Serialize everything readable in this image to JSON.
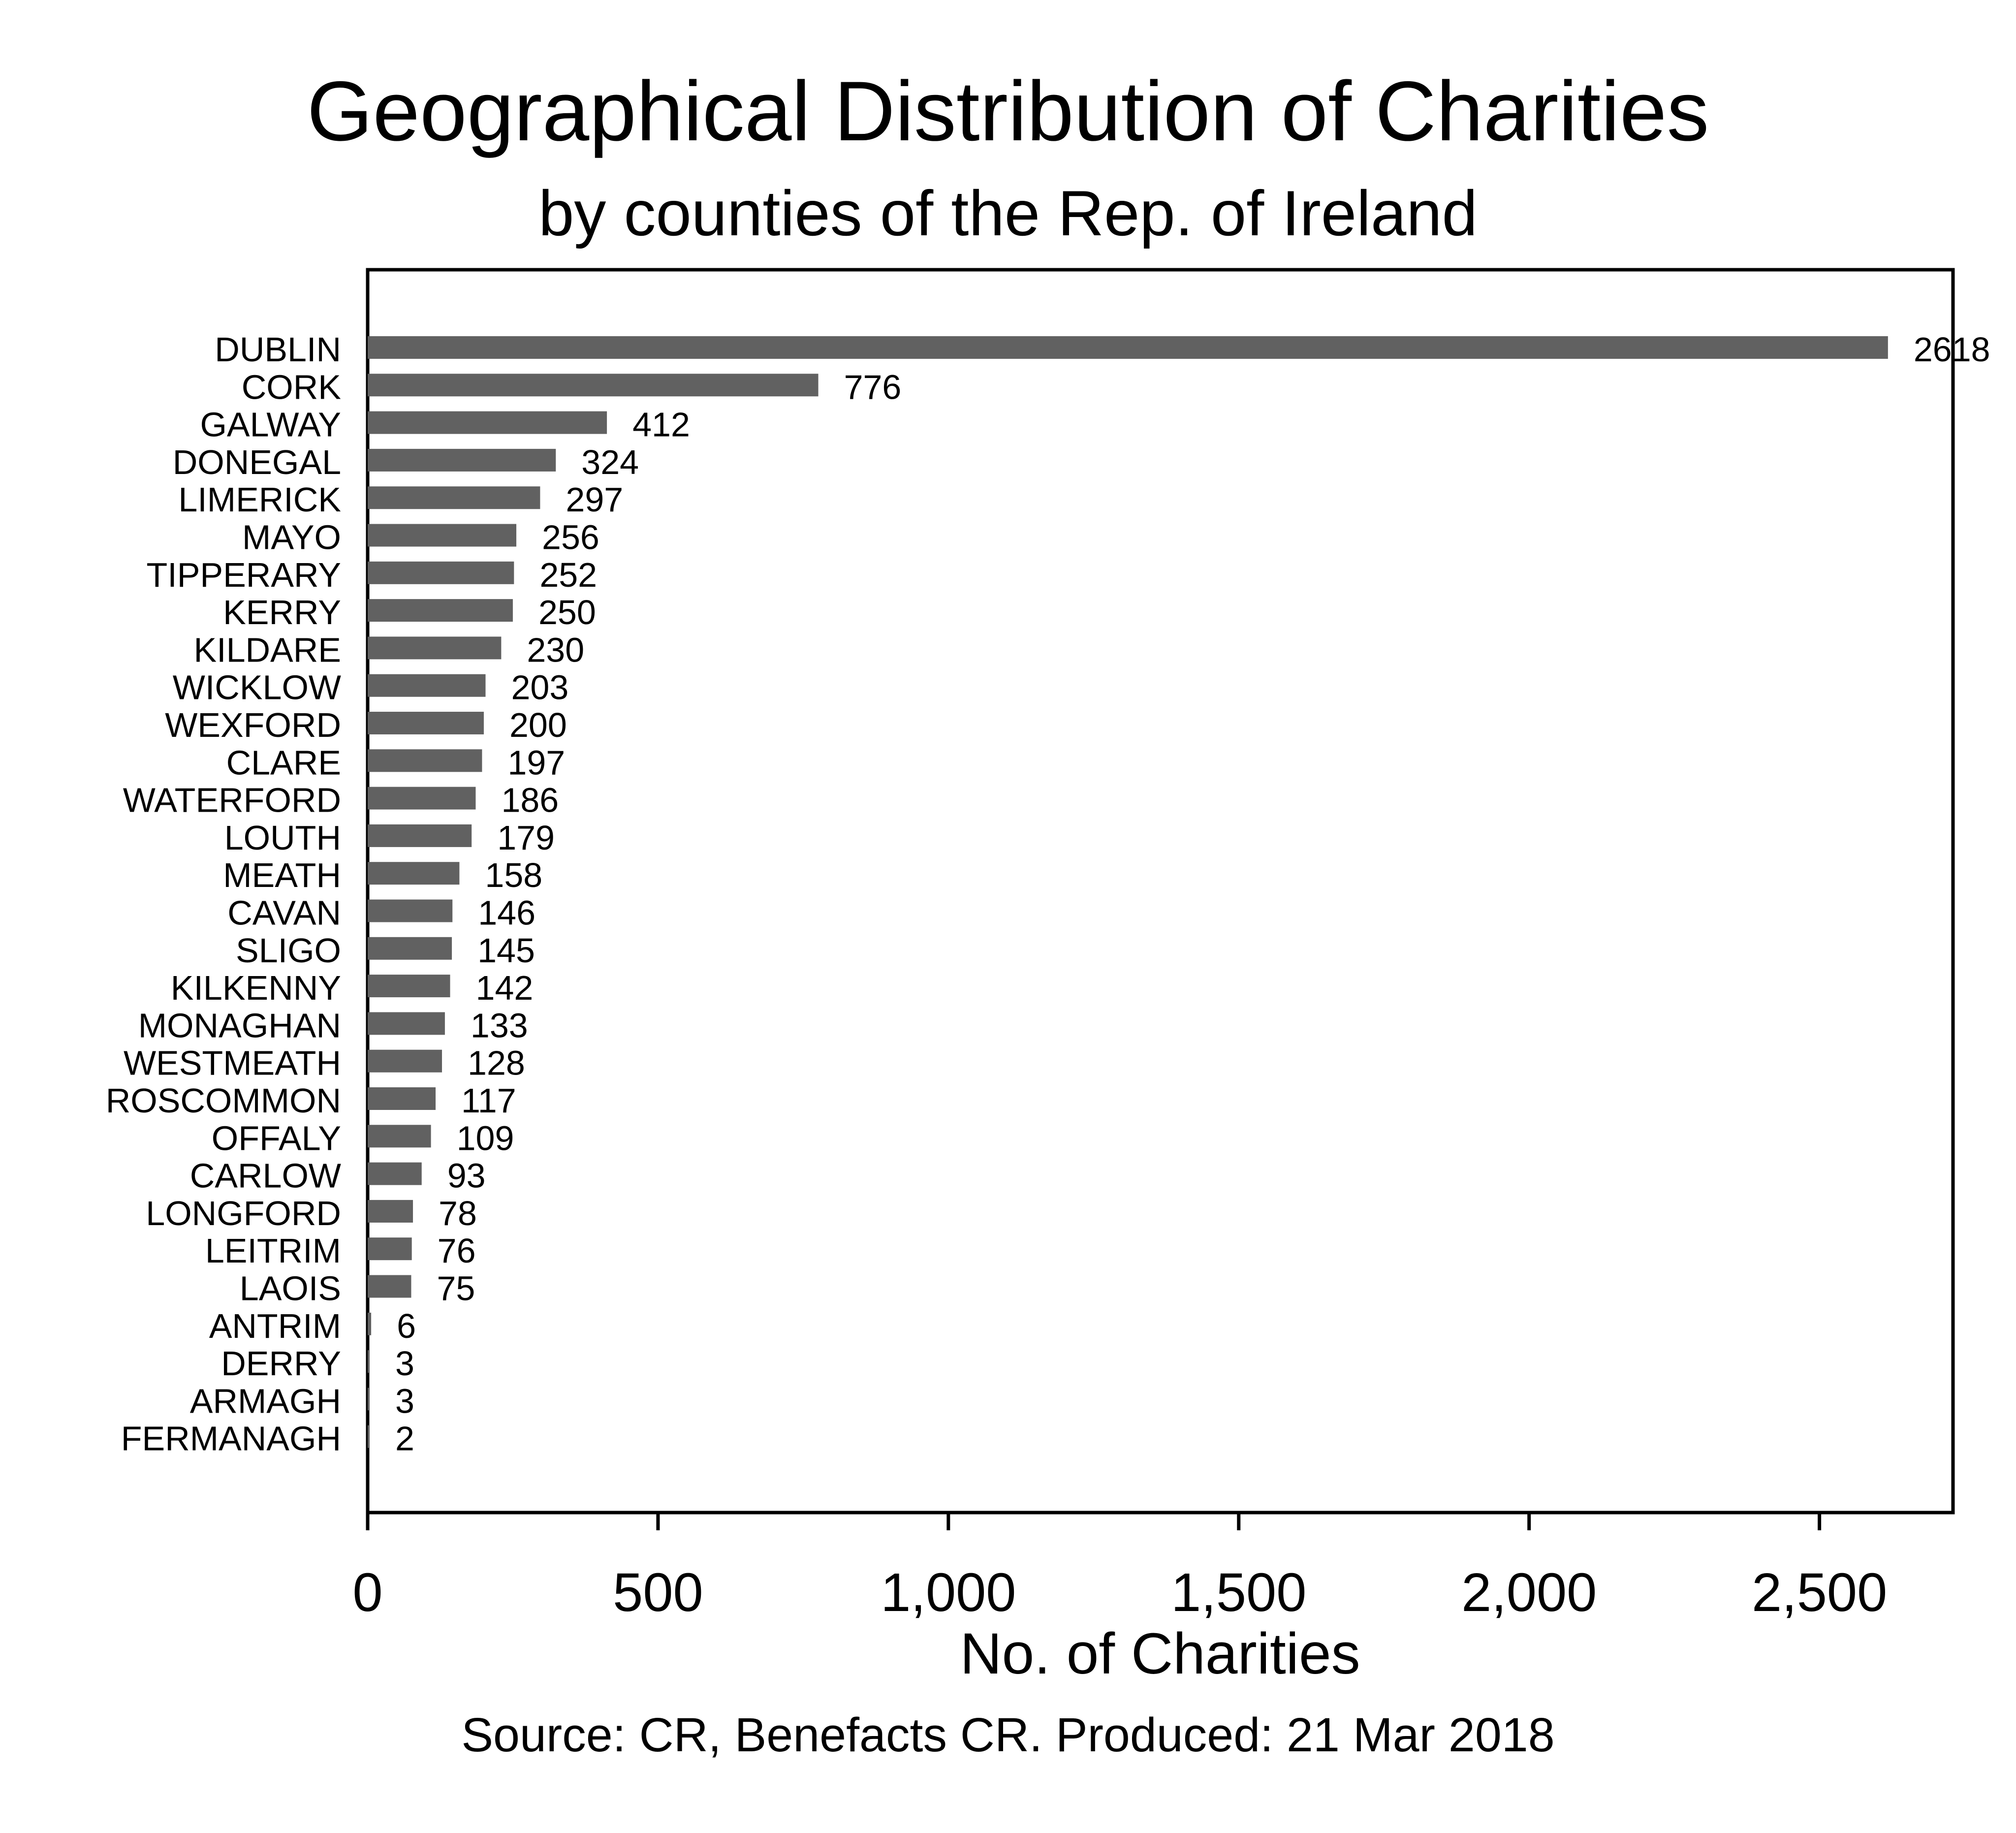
{
  "chart_data": {
    "type": "bar",
    "orientation": "horizontal",
    "title": "Geographical Distribution of Charities",
    "subtitle": "by counties of the Rep. of Ireland",
    "xlabel": "No. of Charities",
    "ylabel": "",
    "source": "Source:  CR, Benefacts CR. Produced: 21 Mar 2018",
    "xlim": [
      0,
      2730
    ],
    "x_ticks": [
      0,
      500,
      1000,
      1500,
      2000,
      2500
    ],
    "x_tick_labels": [
      "0",
      "500",
      "1,000",
      "1,500",
      "2,000",
      "2,500"
    ],
    "grid": false,
    "bar_color": "#616161",
    "categories": [
      "DUBLIN",
      "CORK",
      "GALWAY",
      "DONEGAL",
      "LIMERICK",
      "MAYO",
      "TIPPERARY",
      "KERRY",
      "KILDARE",
      "WICKLOW",
      "WEXFORD",
      "CLARE",
      "WATERFORD",
      "LOUTH",
      "MEATH",
      "CAVAN",
      "SLIGO",
      "KILKENNY",
      "MONAGHAN",
      "WESTMEATH",
      "ROSCOMMON",
      "OFFALY",
      "CARLOW",
      "LONGFORD",
      "LEITRIM",
      "LAOIS",
      "ANTRIM",
      "DERRY",
      "ARMAGH",
      "FERMANAGH"
    ],
    "values": [
      2618,
      776,
      412,
      324,
      297,
      256,
      252,
      250,
      230,
      203,
      200,
      197,
      186,
      179,
      158,
      146,
      145,
      142,
      133,
      128,
      117,
      109,
      93,
      78,
      76,
      75,
      6,
      3,
      3,
      2
    ],
    "data_labels": [
      "2618",
      "776",
      "412",
      "324",
      "297",
      "256",
      "252",
      "250",
      "230",
      "203",
      "200",
      "197",
      "186",
      "179",
      "158",
      "146",
      "145",
      "142",
      "133",
      "128",
      "117",
      "109",
      "93",
      "78",
      "76",
      "75",
      "6",
      "3",
      "3",
      "2"
    ]
  }
}
